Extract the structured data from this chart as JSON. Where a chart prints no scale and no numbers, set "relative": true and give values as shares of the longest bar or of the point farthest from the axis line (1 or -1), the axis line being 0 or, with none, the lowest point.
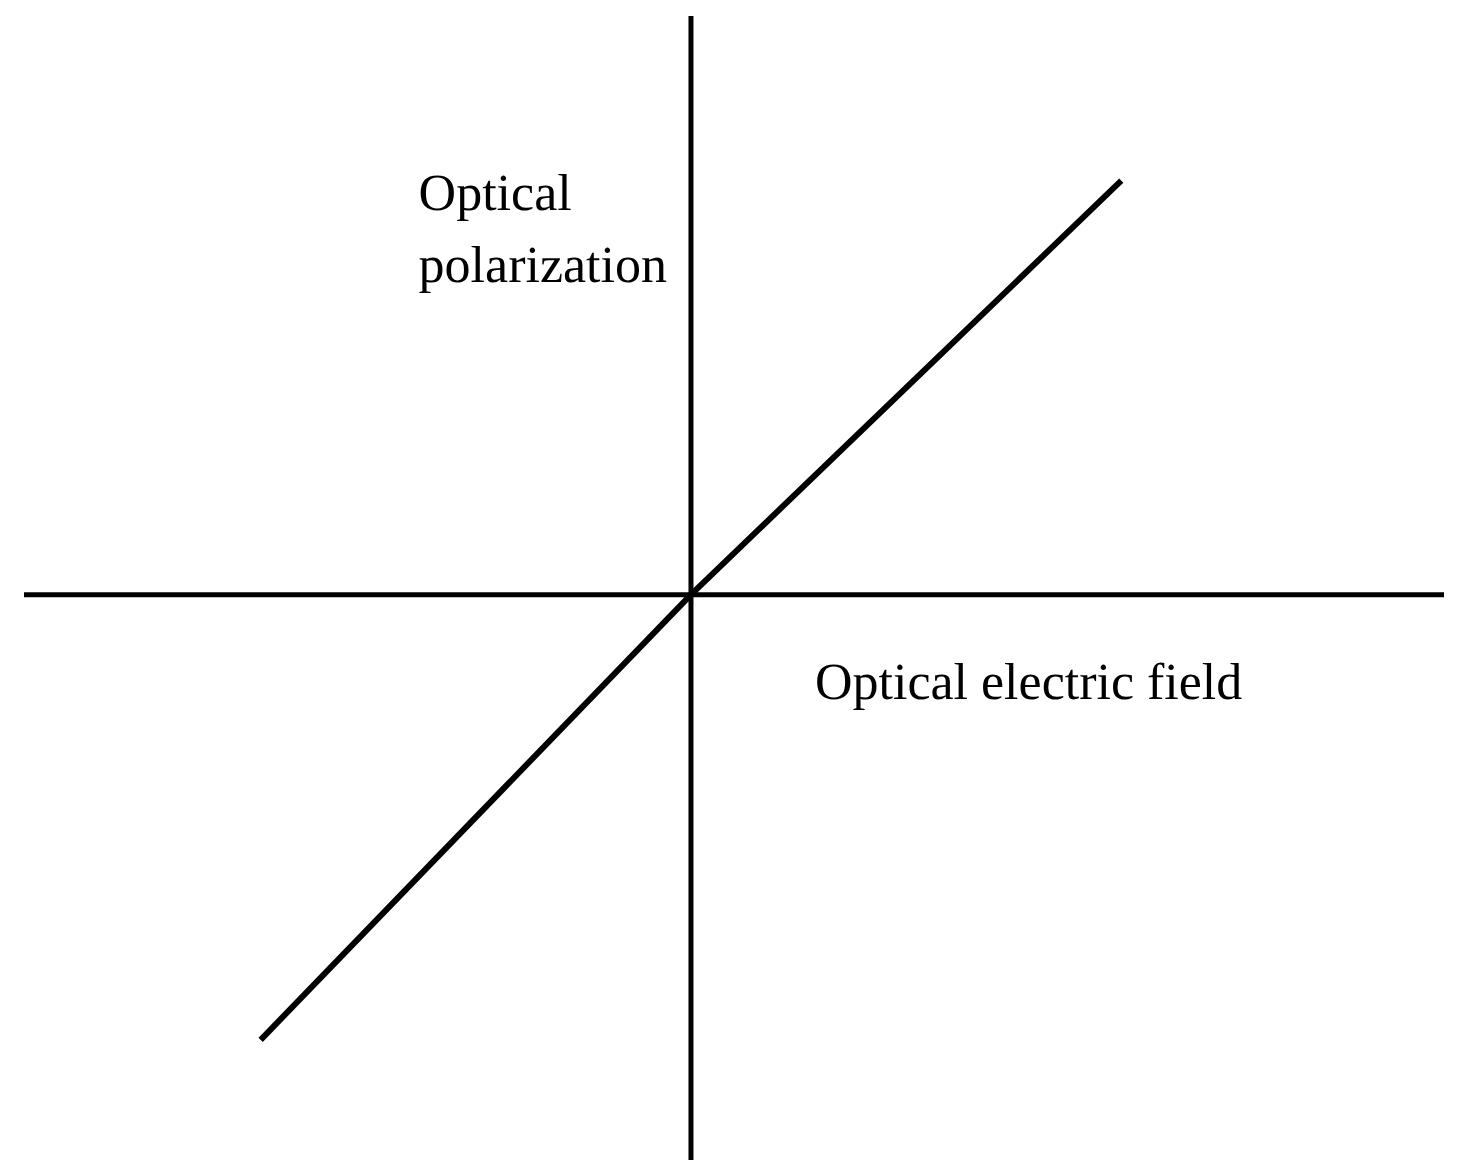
{
  "chart_data": {
    "type": "line",
    "relative": true,
    "xlabel": "Optical electric field",
    "ylabel": "Optical polarization",
    "categories": [
      null,
      null,
      null
    ],
    "series": [
      {
        "color": "#000000",
        "values": [
          -1,
          0,
          0.93
        ]
      }
    ]
  }
}
